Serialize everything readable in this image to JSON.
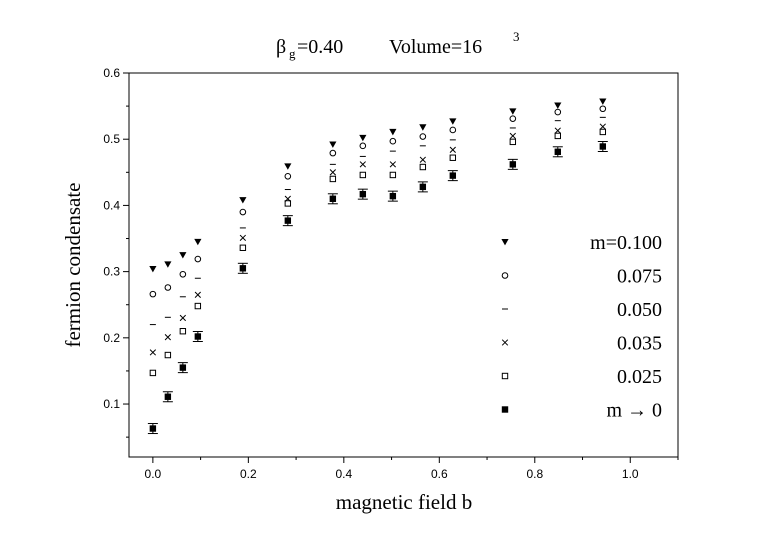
{
  "chart_data": {
    "type": "scatter",
    "title_prefix": "β",
    "title_sub": "g",
    "title_value": "=0.40",
    "title_volume": "Volume=16",
    "title_volume_sup": "3",
    "xlabel": "magnetic field b",
    "ylabel": "fermion condensate",
    "xlim": [
      -0.05,
      1.1
    ],
    "ylim": [
      0.02,
      0.6
    ],
    "xticks": [
      "0.0",
      "0.2",
      "0.4",
      "0.6",
      "0.8",
      "1.0"
    ],
    "xtick_values": [
      0.0,
      0.2,
      0.4,
      0.6,
      0.8,
      1.0
    ],
    "yticks": [
      "0.1",
      "0.2",
      "0.3",
      "0.4",
      "0.5",
      "0.6"
    ],
    "ytick_values": [
      0.1,
      0.2,
      0.3,
      0.4,
      0.5,
      0.6
    ],
    "grid": false,
    "legend_position": "bottom-right",
    "x": [
      0.0,
      0.0314,
      0.0628,
      0.0942,
      0.1885,
      0.2827,
      0.377,
      0.4398,
      0.5027,
      0.5655,
      0.6283,
      0.754,
      0.8482,
      0.9425
    ],
    "series": [
      {
        "name": "m=0.100",
        "marker": "triangle-down",
        "values": [
          0.304,
          0.311,
          0.325,
          0.345,
          0.408,
          0.459,
          0.492,
          0.502,
          0.511,
          0.518,
          0.527,
          0.542,
          0.551,
          0.557
        ]
      },
      {
        "name": "0.075",
        "marker": "circle-open",
        "values": [
          0.266,
          0.276,
          0.296,
          0.319,
          0.39,
          0.444,
          0.479,
          0.49,
          0.497,
          0.504,
          0.514,
          0.531,
          0.541,
          0.546
        ]
      },
      {
        "name": "0.050",
        "marker": "dash",
        "values": [
          0.22,
          0.231,
          0.262,
          0.29,
          0.366,
          0.424,
          0.462,
          0.474,
          0.482,
          0.49,
          0.499,
          0.517,
          0.528,
          0.533
        ]
      },
      {
        "name": "0.035",
        "marker": "cross",
        "values": [
          0.178,
          0.201,
          0.23,
          0.265,
          0.351,
          0.41,
          0.45,
          0.462,
          0.462,
          0.469,
          0.484,
          0.505,
          0.513,
          0.519
        ]
      },
      {
        "name": "0.025",
        "marker": "square-open",
        "values": [
          0.147,
          0.174,
          0.21,
          0.248,
          0.336,
          0.403,
          0.44,
          0.446,
          0.446,
          0.458,
          0.472,
          0.496,
          0.505,
          0.511
        ]
      },
      {
        "name": "m → 0",
        "marker": "square-filled",
        "values": [
          0.063,
          0.111,
          0.155,
          0.202,
          0.305,
          0.377,
          0.41,
          0.417,
          0.414,
          0.428,
          0.445,
          0.462,
          0.481,
          0.489
        ],
        "error_bars": true
      }
    ]
  }
}
